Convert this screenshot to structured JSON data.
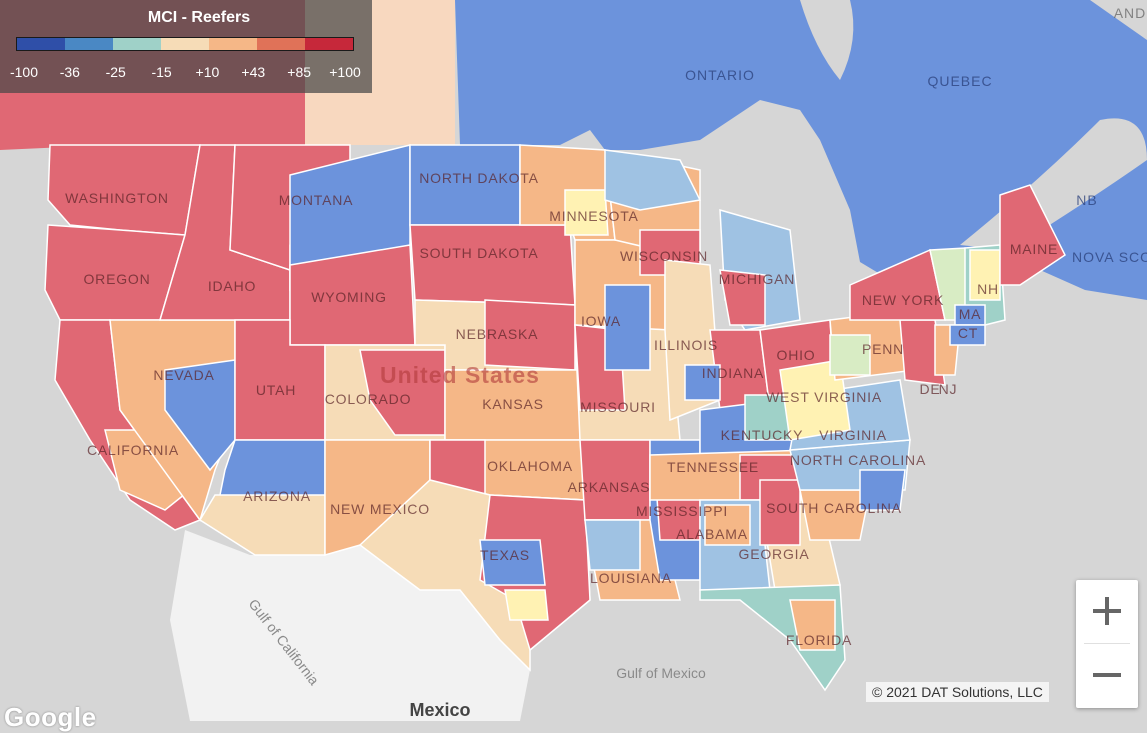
{
  "legend": {
    "title": "MCI - Reefers",
    "colors": [
      "#2f4fa8",
      "#4a88c4",
      "#9fd1c8",
      "#f6dcb7",
      "#f5b787",
      "#e07258",
      "#c6283a"
    ],
    "ticks": [
      "-100",
      "-36",
      "-25",
      "-15",
      "+10",
      "+43",
      "+85",
      "+100"
    ]
  },
  "map": {
    "base_colors": {
      "land": "#e9e9e9",
      "water": "#d6d6d6",
      "canada": "#6c93dc",
      "mexico": "#f2f2f2",
      "border": "#ffffff"
    },
    "labels": {
      "countries": [
        "United States",
        "Mexico"
      ],
      "provinces": [
        "ONTARIO",
        "QUEBEC",
        "NB",
        "NOVA SCO"
      ],
      "states": [
        "WASHINGTON",
        "OREGON",
        "CALIFORNIA",
        "NEVADA",
        "IDAHO",
        "MONTANA",
        "WYOMING",
        "UTAH",
        "ARIZONA",
        "COLORADO",
        "NEW MEXICO",
        "NORTH DAKOTA",
        "SOUTH DAKOTA",
        "NEBRASKA",
        "KANSAS",
        "OKLAHOMA",
        "TEXAS",
        "MINNESOTA",
        "IOWA",
        "MISSOURI",
        "ARKANSAS",
        "LOUISIANA",
        "WISCONSIN",
        "ILLINOIS",
        "MISSISSIPPI",
        "MICHIGAN",
        "INDIANA",
        "KENTUCKY",
        "TENNESSEE",
        "ALABAMA",
        "OHIO",
        "WEST VIRGINIA",
        "VIRGINIA",
        "NORTH CAROLINA",
        "SOUTH CAROLINA",
        "GEORGIA",
        "FLORIDA",
        "PENN",
        "NEW YORK",
        "MAINE",
        "NH",
        "MA",
        "CT",
        "NJ",
        "DE"
      ],
      "water": [
        "Gulf of Mexico",
        "Gulf of California"
      ],
      "partial": [
        "AND"
      ]
    }
  },
  "zoom": {
    "in_label": "Zoom in",
    "out_label": "Zoom out"
  },
  "copyright": "© 2021 DAT Solutions, LLC",
  "logo": "Google"
}
